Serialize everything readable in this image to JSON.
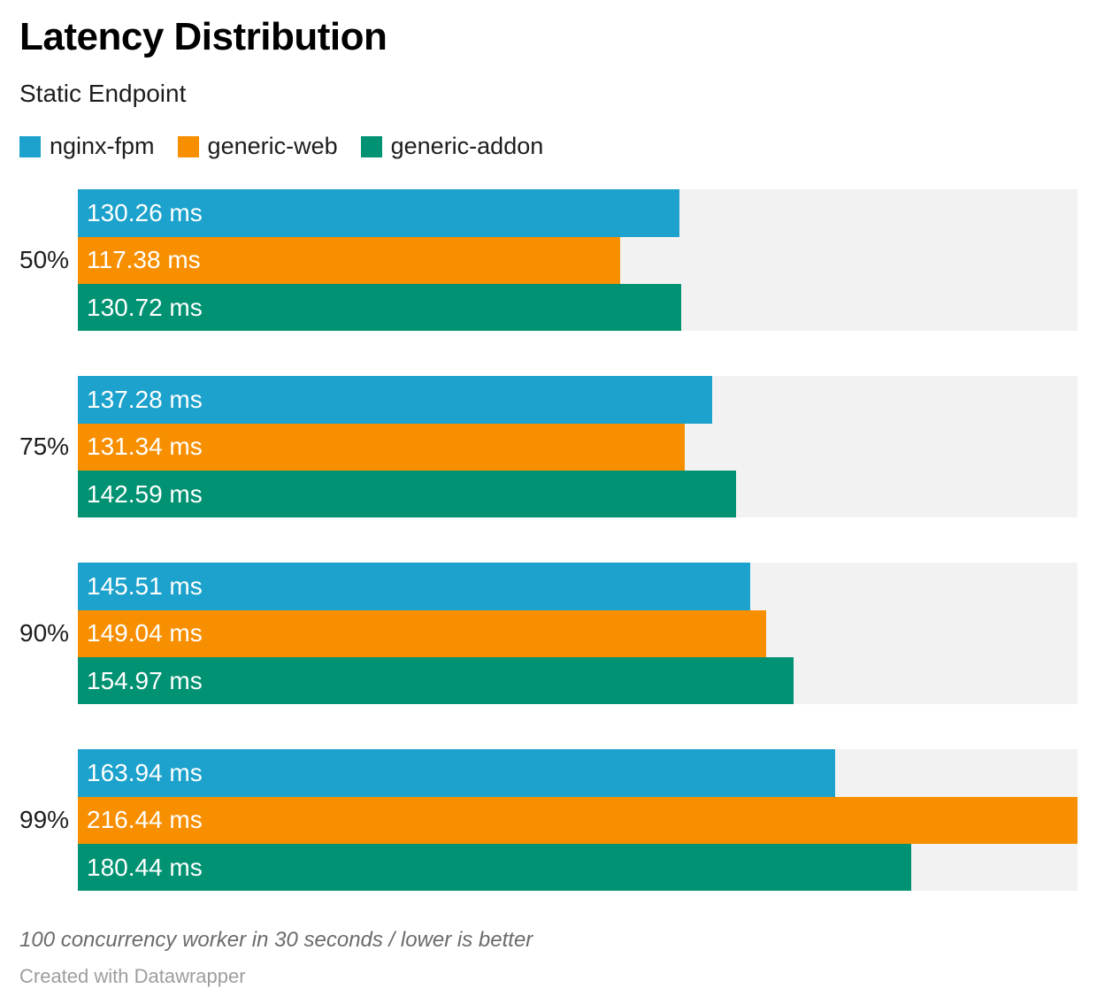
{
  "header": {
    "title": "Latency Distribution",
    "subtitle": "Static Endpoint"
  },
  "chart_data": {
    "type": "bar",
    "orientation": "horizontal",
    "title": "Latency Distribution",
    "subtitle": "Static Endpoint",
    "categories": [
      "50%",
      "75%",
      "90%",
      "99%"
    ],
    "series": [
      {
        "name": "nginx-fpm",
        "color": "#1CA2CC",
        "values": [
          130.26,
          137.28,
          145.51,
          163.94
        ]
      },
      {
        "name": "generic-web",
        "color": "#F88F00",
        "values": [
          117.38,
          131.34,
          149.04,
          216.44
        ]
      },
      {
        "name": "generic-addon",
        "color": "#009272",
        "values": [
          130.72,
          142.59,
          154.97,
          180.44
        ]
      }
    ],
    "unit": "ms",
    "value_label_decimals": 2,
    "xmin": 0,
    "xmax": 216.44,
    "track_color": "#f2f2f2",
    "grid": false,
    "legend_position": "top"
  },
  "footer": {
    "note": "100 concurrency worker in 30 seconds / lower is better",
    "attribution": "Created with Datawrapper"
  }
}
